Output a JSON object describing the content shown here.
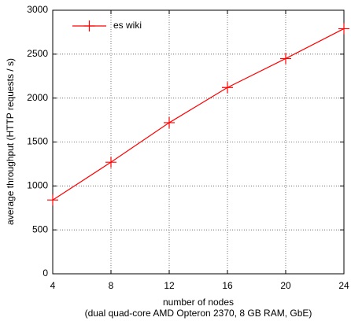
{
  "chart_data": {
    "type": "line",
    "ylabel": "average throughput (HTTP requests / s)",
    "xlabel": [
      "number of nodes",
      "(dual quad-core AMD Opteron 2370, 8 GB RAM, GbE)"
    ],
    "x": [
      4,
      8,
      12,
      16,
      20,
      24
    ],
    "series": [
      {
        "name": "es wiki",
        "color": "#ff0000",
        "values": [
          840,
          1270,
          1720,
          2120,
          2450,
          2790
        ]
      }
    ],
    "xlim": [
      4,
      24
    ],
    "xticks": [
      4,
      8,
      12,
      16,
      20,
      24
    ],
    "ylim": [
      0,
      3000
    ],
    "yticks": [
      0,
      500,
      1000,
      1500,
      2000,
      2500,
      3000
    ],
    "grid": true,
    "legend": "upper left"
  }
}
